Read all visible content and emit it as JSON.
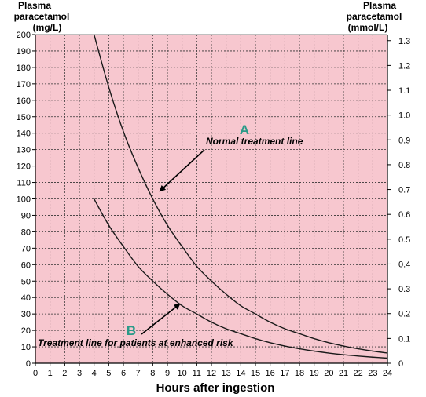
{
  "chart_data": {
    "type": "line",
    "y_axis_left": {
      "label_line1": "Plasma",
      "label_line2": "paracetamol",
      "label_line3": "(mg/L)",
      "ylim": [
        0,
        200
      ],
      "ticks": [
        0,
        10,
        20,
        30,
        40,
        50,
        60,
        70,
        80,
        90,
        100,
        110,
        120,
        130,
        140,
        150,
        160,
        170,
        180,
        190,
        200
      ]
    },
    "y_axis_right": {
      "label_line1": "Plasma",
      "label_line2": "paracetamol",
      "label_line3": "(mmol/L)",
      "ylim": [
        0,
        1.3245
      ],
      "ticks": [
        "0",
        "0.1",
        "0.2",
        "0.3",
        "0.4",
        "0.5",
        "0.6",
        "0.7",
        "0.8",
        "0.9",
        "1.0",
        "1.1",
        "1.2",
        "1.3"
      ]
    },
    "x_axis": {
      "label": "Hours after ingestion",
      "xlim": [
        0,
        24
      ],
      "ticks": [
        0,
        1,
        2,
        3,
        4,
        5,
        6,
        7,
        8,
        9,
        10,
        11,
        12,
        13,
        14,
        15,
        16,
        17,
        18,
        19,
        20,
        21,
        22,
        23,
        24
      ]
    },
    "grid": true,
    "background_color": "#f7c7cf",
    "series": [
      {
        "x": [
          4,
          5,
          6,
          7,
          8,
          9,
          10,
          11,
          12,
          13,
          14,
          15,
          16,
          17,
          18,
          19,
          20,
          21,
          22,
          23,
          24
        ],
        "values": [
          200,
          168,
          141,
          119,
          100,
          84,
          71,
          59,
          50,
          42,
          35,
          30,
          25,
          21,
          18,
          15,
          12.5,
          10.5,
          8.8,
          7.4,
          6.2
        ]
      },
      {
        "x": [
          4,
          5,
          6,
          7,
          8,
          9,
          10,
          11,
          12,
          13,
          14,
          15,
          16,
          17,
          18,
          19,
          20,
          21,
          22,
          23,
          24
        ],
        "values": [
          100,
          84,
          71,
          59,
          50,
          42,
          35,
          30,
          25,
          21,
          18,
          15,
          12.5,
          10.5,
          8.8,
          7.4,
          6.2,
          5.2,
          4.4,
          3.7,
          3.1
        ]
      }
    ],
    "annotations": {
      "letter_a": "A",
      "normal_line": "Normal treatment line",
      "letter_b": "B",
      "enhanced_line": "Treatment line for patients at enhanced risk"
    }
  }
}
